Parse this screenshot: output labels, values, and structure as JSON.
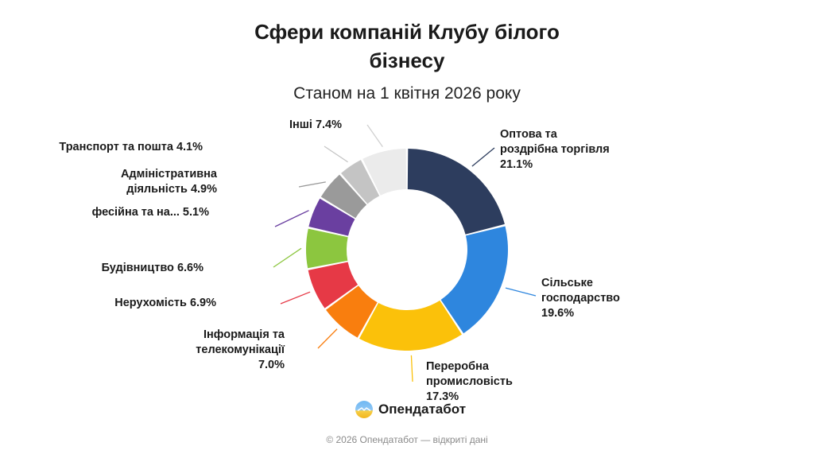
{
  "chart_data": {
    "type": "pie",
    "donut": true,
    "title_line1": "Сфери компаній Клубу білого",
    "title_line2": "бізнесу",
    "subtitle": "Станом на 1 квітня 2026 року",
    "slices": [
      {
        "label": "Оптова та\nроздрібна торгівля\n21.1%",
        "value": 21.1,
        "color": "#2d3d5e"
      },
      {
        "label": "Сільське\nгосподарство\n19.6%",
        "value": 19.6,
        "color": "#2e86de"
      },
      {
        "label": "Переробна\nпромисловість\n17.3%",
        "value": 17.3,
        "color": "#fbc10a"
      },
      {
        "label": "Інформація та\nтелекомунікації\n7.0%",
        "value": 7.0,
        "color": "#f97e0e"
      },
      {
        "label": "Нерухомість 6.9%",
        "value": 6.9,
        "color": "#e63946"
      },
      {
        "label": "Будівництво 6.6%",
        "value": 6.6,
        "color": "#8cc63f"
      },
      {
        "label": "фесійна та на... 5.1%",
        "value": 5.1,
        "color": "#6a3fa0"
      },
      {
        "label": "Адміністративна\nдіяльність 4.9%",
        "value": 4.9,
        "color": "#9a9a9a"
      },
      {
        "label": "Транспорт та пошта 4.1%",
        "value": 4.1,
        "color": "#c4c4c4"
      },
      {
        "label": "Інші 7.4%",
        "value": 7.4,
        "color": "#ebebeb"
      }
    ]
  },
  "brand": {
    "name": "Опендатабот",
    "icon": "opendatabot-logo-icon"
  },
  "footer": "© 2026 Опендатабот — відкриті дані"
}
